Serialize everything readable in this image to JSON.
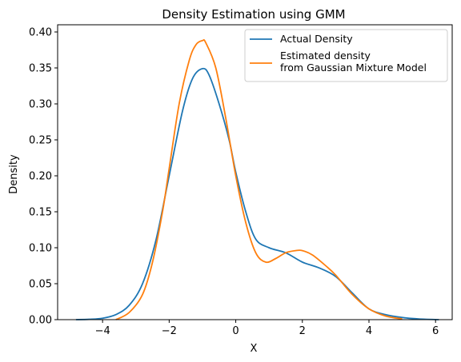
{
  "chart_data": {
    "type": "line",
    "title": "Density Estimation using GMM",
    "xlabel": "X",
    "ylabel": "Density",
    "xlim": [
      -5.35,
      6.5
    ],
    "ylim": [
      0,
      0.41
    ],
    "xticks": [
      -4,
      -2,
      0,
      2,
      4,
      6
    ],
    "yticks": [
      0.0,
      0.05,
      0.1,
      0.15,
      0.2,
      0.25,
      0.3,
      0.35,
      0.4
    ],
    "xtick_labels": [
      "−4",
      "−2",
      "0",
      "2",
      "4",
      "6"
    ],
    "ytick_labels": [
      "0.00",
      "0.05",
      "0.10",
      "0.15",
      "0.20",
      "0.25",
      "0.30",
      "0.35",
      "0.40"
    ],
    "grid": false,
    "legend_position": "top-right",
    "series": [
      {
        "name": "Actual Density",
        "color": "#1f77b4",
        "x": [
          -4.8,
          -4.4,
          -4.0,
          -3.6,
          -3.2,
          -2.8,
          -2.4,
          -2.0,
          -1.6,
          -1.3,
          -1.0,
          -0.8,
          -0.5,
          -0.2,
          0.0,
          0.3,
          0.6,
          1.0,
          1.5,
          2.0,
          2.5,
          3.0,
          3.5,
          4.0,
          4.5,
          5.0,
          5.5,
          6.1
        ],
        "y": [
          0.0,
          0.0005,
          0.002,
          0.007,
          0.02,
          0.05,
          0.11,
          0.2,
          0.29,
          0.335,
          0.349,
          0.34,
          0.3,
          0.25,
          0.205,
          0.15,
          0.112,
          0.1,
          0.093,
          0.08,
          0.072,
          0.06,
          0.037,
          0.015,
          0.007,
          0.003,
          0.001,
          0.0
        ]
      },
      {
        "name": "Estimated density\nfrom Gaussian Mixture Model",
        "color": "#ff7f0e",
        "x": [
          -3.6,
          -3.2,
          -2.8,
          -2.5,
          -2.2,
          -2.0,
          -1.7,
          -1.4,
          -1.2,
          -1.0,
          -0.9,
          -0.6,
          -0.3,
          0.0,
          0.3,
          0.6,
          0.9,
          1.2,
          1.5,
          1.8,
          2.0,
          2.3,
          2.7,
          3.0,
          3.5,
          4.0,
          4.5,
          5.0
        ],
        "y": [
          0.0,
          0.01,
          0.035,
          0.08,
          0.15,
          0.21,
          0.3,
          0.36,
          0.382,
          0.388,
          0.385,
          0.35,
          0.28,
          0.2,
          0.135,
          0.093,
          0.08,
          0.085,
          0.093,
          0.096,
          0.096,
          0.09,
          0.075,
          0.062,
          0.035,
          0.015,
          0.005,
          0.001
        ]
      }
    ]
  }
}
